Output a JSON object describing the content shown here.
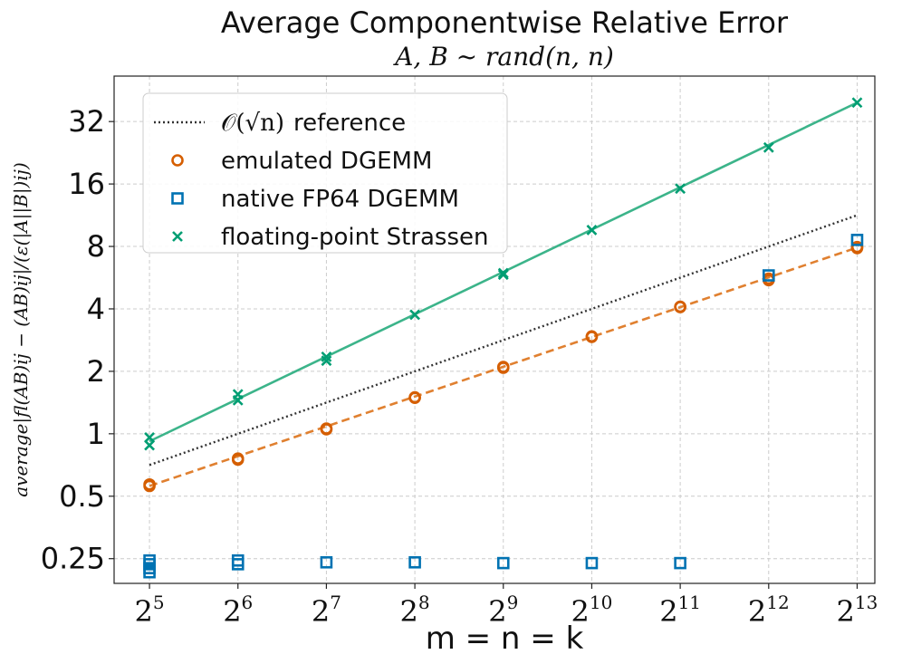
{
  "chart_data": {
    "type": "line",
    "title": "Average Componentwise Relative Error",
    "subtitle": "A, B ~ rand(n, n)",
    "xlabel": "m = n = k",
    "ylabel": "average|fl(AB)ij − (AB)ij|/(ε(|A||B|)ij)",
    "x_base": "2",
    "x_exponents": [
      5,
      6,
      7,
      8,
      9,
      10,
      11,
      12,
      13
    ],
    "x_tick_exponent_labels": [
      "5",
      "6",
      "7",
      "8",
      "9",
      "10",
      "11",
      "12",
      "13"
    ],
    "y_scale": "log2",
    "yticks": [
      0.25,
      0.5,
      1,
      2,
      4,
      8,
      16,
      32
    ],
    "ytick_labels": [
      "0.25",
      "0.5",
      "1",
      "2",
      "4",
      "8",
      "16",
      "32"
    ],
    "xlim_exponent": [
      4.6,
      13.2
    ],
    "ylim": [
      0.19,
      53
    ],
    "grid": true,
    "legend_position": "top-left",
    "series": [
      {
        "name": "O(√n) reference",
        "legend_label": "reference",
        "legend_math": "𝒪(√n)",
        "kind": "reference",
        "color": "#333333",
        "x_exponents": [
          5,
          13
        ],
        "values": [
          0.707,
          11.31
        ]
      },
      {
        "name": "emulated DGEMM",
        "legend_label": "emulated DGEMM",
        "kind": "circle",
        "color": "#d55e00",
        "fit_color": "#e08030",
        "fit_exponents": [
          5,
          13
        ],
        "fit_values": [
          0.56,
          7.9
        ],
        "points": [
          [
            5,
            0.57
          ],
          [
            5,
            0.56
          ],
          [
            6,
            0.75
          ],
          [
            6,
            0.76
          ],
          [
            7,
            1.06
          ],
          [
            7,
            1.05
          ],
          [
            8,
            1.5
          ],
          [
            8,
            1.49
          ],
          [
            9,
            2.1
          ],
          [
            9,
            2.08
          ],
          [
            10,
            2.95
          ],
          [
            10,
            2.93
          ],
          [
            11,
            4.1
          ],
          [
            11,
            4.08
          ],
          [
            12,
            5.5
          ],
          [
            12,
            5.6
          ],
          [
            13,
            7.95
          ],
          [
            13,
            7.85
          ]
        ]
      },
      {
        "name": "native FP64 DGEMM",
        "legend_label": "native FP64 DGEMM",
        "kind": "square",
        "color": "#0072b2",
        "points": [
          [
            5,
            0.245
          ],
          [
            5,
            0.235
          ],
          [
            5,
            0.225
          ],
          [
            5,
            0.215
          ],
          [
            6,
            0.245
          ],
          [
            6,
            0.235
          ],
          [
            7,
            0.24
          ],
          [
            8,
            0.24
          ],
          [
            9,
            0.238
          ],
          [
            10,
            0.238
          ],
          [
            11,
            0.238
          ],
          [
            12,
            5.8
          ],
          [
            13,
            8.6
          ]
        ]
      },
      {
        "name": "floating-point Strassen",
        "legend_label": "floating-point Strassen",
        "kind": "x",
        "color": "#009e73",
        "fit_color": "#3cb48a",
        "fit_exponents": [
          5,
          13
        ],
        "fit_values": [
          0.92,
          39.5
        ],
        "points": [
          [
            5,
            0.96
          ],
          [
            5,
            0.88
          ],
          [
            6,
            1.55
          ],
          [
            6,
            1.45
          ],
          [
            7,
            2.35
          ],
          [
            7,
            2.25
          ],
          [
            8,
            3.75
          ],
          [
            9,
            5.95
          ],
          [
            9,
            5.85
          ],
          [
            10,
            9.6
          ],
          [
            11,
            15.2
          ],
          [
            12,
            24.0
          ],
          [
            13,
            39.5
          ]
        ]
      }
    ]
  }
}
